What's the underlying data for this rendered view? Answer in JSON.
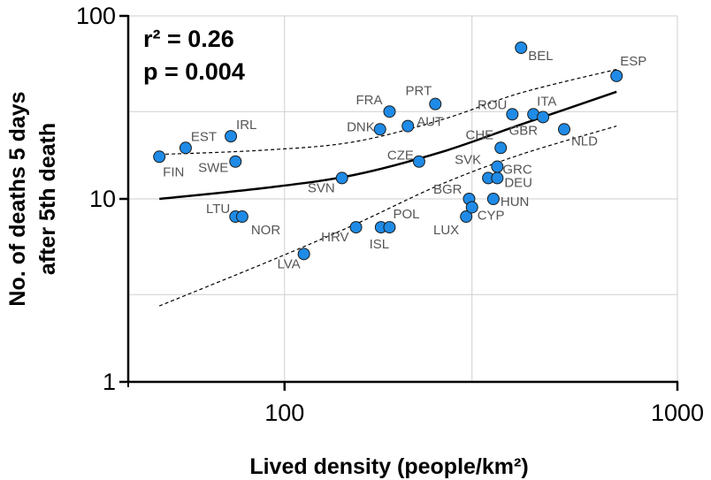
{
  "chart_data": {
    "type": "scatter",
    "title": "",
    "xlabel": "Lived density (people/km²)",
    "ylabel_line1": "No. of deaths 5 days",
    "ylabel_line2": "after 5th death",
    "x_scale": "log",
    "y_scale": "log",
    "xlim": [
      40,
      1000
    ],
    "ylim": [
      1,
      100
    ],
    "x_tick_labels": [
      "100",
      "1000"
    ],
    "y_tick_labels": [
      "1",
      "10",
      "100"
    ],
    "grid": true,
    "stats": {
      "r2": "r² = 0.26",
      "p": "p = 0.004"
    },
    "point_color": "#1f8be6",
    "points": [
      {
        "label": "FIN",
        "x": 48,
        "y": 17
      },
      {
        "label": "EST",
        "x": 56,
        "y": 19
      },
      {
        "label": "IRL",
        "x": 73,
        "y": 22
      },
      {
        "label": "SWE",
        "x": 75,
        "y": 16
      },
      {
        "label": "LTU",
        "x": 75,
        "y": 8
      },
      {
        "label": "NOR",
        "x": 78,
        "y": 8
      },
      {
        "label": "LVA",
        "x": 112,
        "y": 5
      },
      {
        "label": "SVN",
        "x": 140,
        "y": 13
      },
      {
        "label": "HRV",
        "x": 152,
        "y": 7
      },
      {
        "label": "DNK",
        "x": 175,
        "y": 24
      },
      {
        "label": "FRA",
        "x": 185,
        "y": 30
      },
      {
        "label": "ISL",
        "x": 176,
        "y": 7
      },
      {
        "label": "POL",
        "x": 185,
        "y": 7
      },
      {
        "label": "AUT",
        "x": 206,
        "y": 25
      },
      {
        "label": "CZE",
        "x": 220,
        "y": 16
      },
      {
        "label": "PRT",
        "x": 242,
        "y": 33
      },
      {
        "label": "LUX",
        "x": 290,
        "y": 8
      },
      {
        "label": "BGR",
        "x": 295,
        "y": 10
      },
      {
        "label": "CYP",
        "x": 300,
        "y": 9
      },
      {
        "label": "SVK",
        "x": 330,
        "y": 13
      },
      {
        "label": "HUN",
        "x": 340,
        "y": 10
      },
      {
        "label": "DEU",
        "x": 348,
        "y": 13
      },
      {
        "label": "GRC",
        "x": 348,
        "y": 15
      },
      {
        "label": "CHE",
        "x": 355,
        "y": 19
      },
      {
        "label": "ROU",
        "x": 380,
        "y": 29
      },
      {
        "label": "BEL",
        "x": 400,
        "y": 67
      },
      {
        "label": "ITA",
        "x": 430,
        "y": 29
      },
      {
        "label": "GBR",
        "x": 455,
        "y": 28
      },
      {
        "label": "NLD",
        "x": 515,
        "y": 24
      },
      {
        "label": "ESP",
        "x": 700,
        "y": 47
      }
    ],
    "fit_line": [
      [
        48,
        10.0
      ],
      [
        90,
        11.5
      ],
      [
        150,
        13.5
      ],
      [
        250,
        18
      ],
      [
        400,
        25.5
      ],
      [
        700,
        38.5
      ]
    ],
    "ci_upper": [
      [
        48,
        17.5
      ],
      [
        90,
        18.5
      ],
      [
        150,
        20.5
      ],
      [
        250,
        27
      ],
      [
        400,
        38
      ],
      [
        700,
        51
      ]
    ],
    "ci_lower": [
      [
        48,
        2.6
      ],
      [
        90,
        4.5
      ],
      [
        150,
        7.2
      ],
      [
        250,
        12
      ],
      [
        400,
        17.5
      ],
      [
        700,
        25
      ]
    ]
  }
}
